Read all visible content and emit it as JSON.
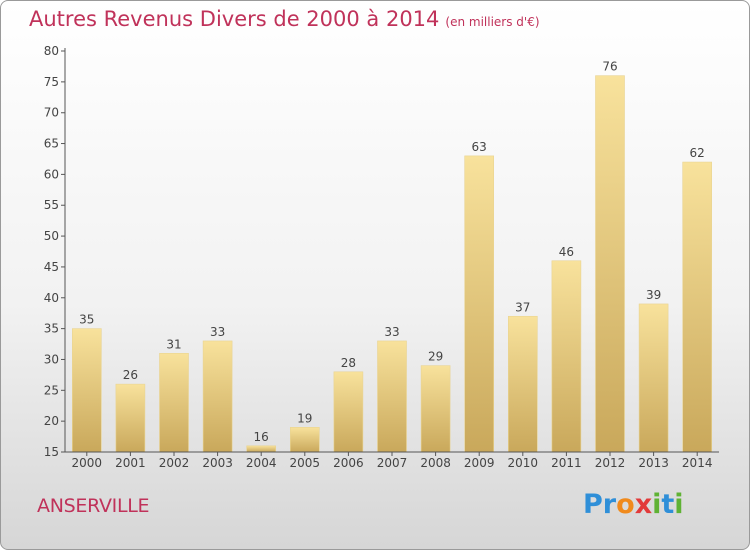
{
  "header": {
    "title": "Autres Revenus Divers de 2000 à 2014",
    "unit": "(en milliers d'€)"
  },
  "footer": {
    "commune": "ANSERVILLE",
    "logo": [
      "P",
      "r",
      "o",
      "x",
      "i",
      "t",
      "i"
    ],
    "logo_colors": [
      "#2f8fd8",
      "#2f8fd8",
      "#f08a1c",
      "#e23a3a",
      "#5fb234",
      "#2f8fd8",
      "#5fb234"
    ]
  },
  "colors": {
    "title": "#c0325a",
    "bar_light": "#f8e29c",
    "bar_dark": "#c9a85b",
    "axis": "#555555"
  },
  "chart_data": {
    "type": "bar",
    "title": "Autres Revenus Divers de 2000 à 2014",
    "subtitle": "(en milliers d'€)",
    "categories": [
      "2000",
      "2001",
      "2002",
      "2003",
      "2004",
      "2005",
      "2006",
      "2007",
      "2008",
      "2009",
      "2010",
      "2011",
      "2012",
      "2013",
      "2014"
    ],
    "values": [
      35,
      26,
      31,
      33,
      16,
      19,
      28,
      33,
      29,
      63,
      37,
      46,
      76,
      39,
      62
    ],
    "ylim": [
      15,
      80
    ],
    "yticks": [
      15,
      20,
      25,
      30,
      35,
      40,
      45,
      50,
      55,
      60,
      65,
      70,
      75,
      80
    ],
    "grid": false
  }
}
